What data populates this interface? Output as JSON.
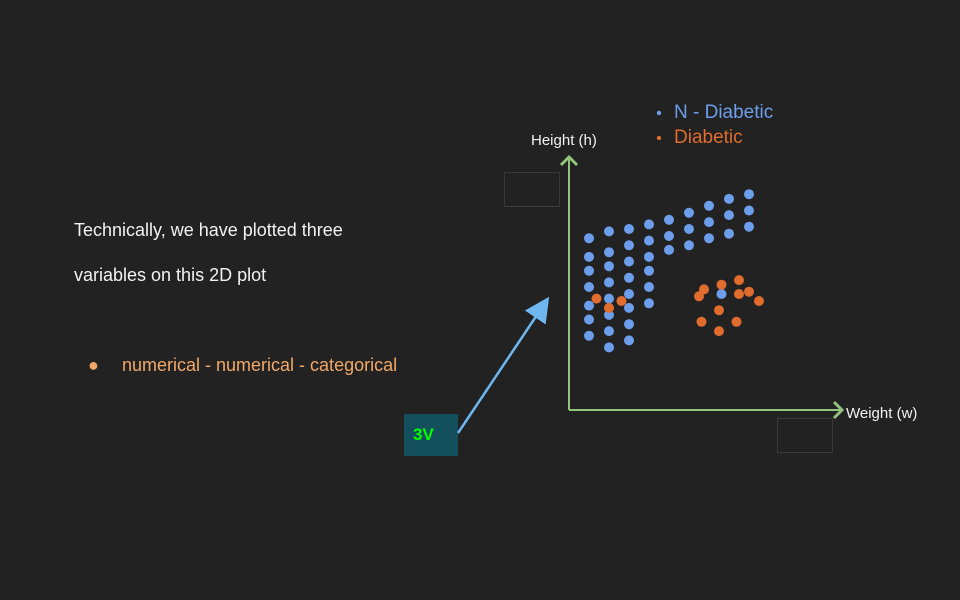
{
  "text": {
    "line1": "Technically, we have plotted three",
    "line2": "variables on this 2D plot",
    "bullet_marker": "●",
    "bullet": "numerical - numerical - categorical",
    "badge": "3V"
  },
  "colors": {
    "background": "#222222",
    "text": "#f2f2f2",
    "bullet": "#f2a866",
    "axis": "#93c47d",
    "non_diabetic": "#6d9eeb",
    "diabetic": "#e06c2e",
    "arrow": "#6fb7f0",
    "badge_bg": "#134f5c",
    "badge_text": "#00ff00"
  },
  "chart_data": {
    "type": "scatter",
    "xlabel": "Weight (w)",
    "ylabel": "Height (h)",
    "grid": false,
    "legend_position": "top-right",
    "series": [
      {
        "name": "N - Diabetic",
        "color": "#6d9eeb",
        "points": [
          [
            0.4,
            7.4
          ],
          [
            0.8,
            7.7
          ],
          [
            1.2,
            7.8
          ],
          [
            1.6,
            8.0
          ],
          [
            2.0,
            8.2
          ],
          [
            2.4,
            8.5
          ],
          [
            2.8,
            8.8
          ],
          [
            3.2,
            9.1
          ],
          [
            3.6,
            9.3
          ],
          [
            0.4,
            6.6
          ],
          [
            0.8,
            6.8
          ],
          [
            1.2,
            7.1
          ],
          [
            1.6,
            7.3
          ],
          [
            2.0,
            7.5
          ],
          [
            2.4,
            7.8
          ],
          [
            2.8,
            8.1
          ],
          [
            3.2,
            8.4
          ],
          [
            3.6,
            8.6
          ],
          [
            0.4,
            6.0
          ],
          [
            0.8,
            6.2
          ],
          [
            1.2,
            6.4
          ],
          [
            1.6,
            6.6
          ],
          [
            2.0,
            6.9
          ],
          [
            2.4,
            7.1
          ],
          [
            2.8,
            7.4
          ],
          [
            3.2,
            7.6
          ],
          [
            3.6,
            7.9
          ],
          [
            0.4,
            5.3
          ],
          [
            0.8,
            5.5
          ],
          [
            1.2,
            5.7
          ],
          [
            1.6,
            6.0
          ],
          [
            0.4,
            4.5
          ],
          [
            0.8,
            4.8
          ],
          [
            1.2,
            5.0
          ],
          [
            1.6,
            5.3
          ],
          [
            0.4,
            3.9
          ],
          [
            0.8,
            4.1
          ],
          [
            1.2,
            4.4
          ],
          [
            1.6,
            4.6
          ],
          [
            0.4,
            3.2
          ],
          [
            0.8,
            3.4
          ],
          [
            1.2,
            3.7
          ],
          [
            0.8,
            2.7
          ],
          [
            1.2,
            3.0
          ],
          [
            3.05,
            5.0
          ]
        ]
      },
      {
        "name": "Diabetic",
        "color": "#e06c2e",
        "points": [
          [
            0.55,
            4.8
          ],
          [
            1.05,
            4.7
          ],
          [
            0.8,
            4.4
          ],
          [
            2.7,
            5.2
          ],
          [
            3.05,
            5.4
          ],
          [
            3.4,
            5.6
          ],
          [
            3.6,
            5.1
          ],
          [
            2.6,
            4.9
          ],
          [
            3.4,
            5.0
          ],
          [
            3.8,
            4.7
          ],
          [
            3.0,
            4.3
          ],
          [
            2.65,
            3.8
          ],
          [
            3.35,
            3.8
          ],
          [
            3.0,
            3.4
          ]
        ]
      }
    ]
  }
}
